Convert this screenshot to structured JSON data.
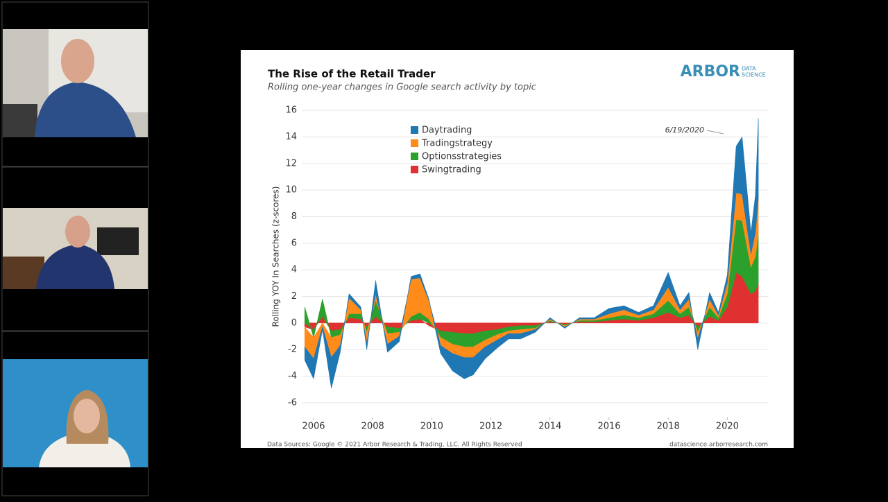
{
  "chart_data": {
    "type": "stacked_area",
    "title": "The Rise of the Retail Trader",
    "subtitle": "Rolling one-year changes in Google search activity by topic",
    "y_label": "Rolling YOY In Searches (z-scores)",
    "annotation": "6/19/2020",
    "source": "Data Sources: Google © 2021 Arbor Research & Trading, LLC. All Rights Reserved",
    "website": "datascience.arborresearch.com",
    "logo": {
      "name": "ARBOR",
      "line1": "DATA",
      "line2": "SCIENCE"
    },
    "legend": "upper left",
    "grid": true,
    "xlim": [
      2005.6,
      2021.4
    ],
    "xticks": [
      2006,
      2008,
      2010,
      2012,
      2014,
      2016,
      2018,
      2020
    ],
    "ylim": [
      -7,
      17
    ],
    "yticks": [
      -6,
      -4,
      -2,
      0,
      2,
      4,
      6,
      8,
      10,
      12,
      14,
      16
    ],
    "x": [
      2005.7,
      2006.0,
      2006.3,
      2006.6,
      2006.9,
      2007.2,
      2007.6,
      2007.8,
      2008.1,
      2008.5,
      2008.9,
      2009.3,
      2009.6,
      2009.9,
      2010.3,
      2010.7,
      2011.1,
      2011.4,
      2011.8,
      2012.2,
      2012.6,
      2013.0,
      2013.5,
      2014.0,
      2014.5,
      2015.0,
      2015.5,
      2016.0,
      2016.5,
      2017.0,
      2017.5,
      2018.0,
      2018.4,
      2018.7,
      2019.0,
      2019.4,
      2019.7,
      2020.0,
      2020.3,
      2020.5,
      2020.8,
      2020.95,
      2021.05
    ],
    "series": [
      {
        "name": "Swingtrading",
        "color": "#e03131",
        "values": [
          -0.3,
          -0.5,
          0.5,
          -0.6,
          -0.5,
          0.4,
          0.3,
          -0.3,
          0.5,
          -0.3,
          -0.4,
          0.2,
          0.3,
          -0.2,
          -0.6,
          -0.7,
          -0.8,
          -0.8,
          -0.6,
          -0.5,
          -0.3,
          -0.2,
          -0.2,
          0.1,
          -0.1,
          0.1,
          0.1,
          0.2,
          0.3,
          0.2,
          0.4,
          0.8,
          0.4,
          0.6,
          -0.3,
          0.5,
          0.2,
          1.2,
          3.8,
          3.5,
          2.2,
          2.4,
          3.0
        ]
      },
      {
        "name": "Optionsstrategies",
        "color": "#2ca02c",
        "values": [
          1.2,
          -0.6,
          1.3,
          -0.5,
          -0.4,
          0.3,
          0.4,
          -0.4,
          1.2,
          -0.5,
          -0.3,
          0.3,
          0.5,
          0.3,
          -0.5,
          -0.9,
          -1.0,
          -1.0,
          -0.7,
          -0.4,
          -0.3,
          -0.3,
          -0.2,
          0.1,
          -0.1,
          0.1,
          0.1,
          0.2,
          0.3,
          0.2,
          0.3,
          0.9,
          0.3,
          0.6,
          -0.4,
          0.7,
          0.2,
          1.0,
          4.0,
          4.2,
          2.0,
          2.6,
          3.6
        ]
      },
      {
        "name": "Tradingstrategy",
        "color": "#ff8c1a",
        "values": [
          -1.5,
          -1.6,
          -0.3,
          -1.5,
          -0.8,
          1.2,
          0.3,
          -0.8,
          0.5,
          -0.8,
          -0.3,
          2.8,
          2.6,
          1.4,
          -0.6,
          -0.7,
          -0.8,
          -0.8,
          -0.5,
          -0.4,
          -0.2,
          -0.3,
          -0.1,
          0.1,
          -0.1,
          0.1,
          0.1,
          0.3,
          0.4,
          0.2,
          0.3,
          1.0,
          0.3,
          0.6,
          -0.5,
          0.6,
          0.2,
          0.8,
          2.0,
          2.0,
          1.0,
          1.8,
          2.8
        ]
      },
      {
        "name": "Daytrading",
        "color": "#1f77b4",
        "values": [
          -1.0,
          -1.5,
          -0.2,
          -2.3,
          -0.5,
          0.3,
          0.2,
          -0.5,
          1.0,
          -0.6,
          -0.4,
          0.2,
          0.3,
          0.1,
          -0.6,
          -1.3,
          -1.6,
          -1.3,
          -0.9,
          -0.6,
          -0.4,
          -0.4,
          -0.2,
          0.1,
          -0.1,
          0.1,
          0.1,
          0.4,
          0.3,
          0.2,
          0.3,
          1.1,
          0.3,
          0.5,
          -0.8,
          0.5,
          0.2,
          0.6,
          3.5,
          4.3,
          1.6,
          2.8,
          6.0
        ]
      }
    ]
  }
}
